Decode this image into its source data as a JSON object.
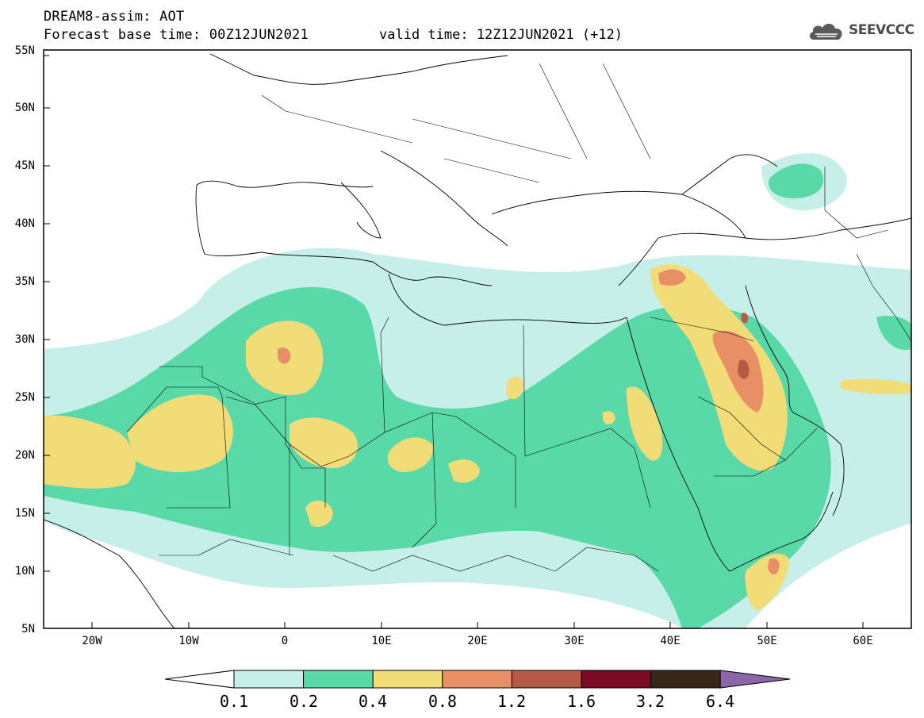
{
  "header": {
    "title": "DREAM8-assim: AOT",
    "base_time": "Forecast base time: 00Z12JUN2021",
    "valid_time": "valid time: 12Z12JUN2021 (+12)"
  },
  "logo": {
    "text": "SEEVCCC",
    "icon": "cloud-icon"
  },
  "map": {
    "variable": "AOT",
    "lat_labels": [
      "55N",
      "50N",
      "45N",
      "40N",
      "35N",
      "30N",
      "25N",
      "20N",
      "15N",
      "10N",
      "5N"
    ],
    "lon_labels": [
      "20W",
      "10W",
      "0",
      "10E",
      "20E",
      "30E",
      "40E",
      "50E",
      "60E"
    ]
  },
  "colorbar": {
    "labels": [
      "0.1",
      "0.2",
      "0.4",
      "0.8",
      "1.2",
      "1.6",
      "3.2",
      "6.4"
    ],
    "colors": [
      "#c6efe9",
      "#5ad9a8",
      "#f2dc77",
      "#e98f66",
      "#b45a47",
      "#7c0a24",
      "#3a2618",
      "#8b66a8"
    ],
    "under_color": "#ffffff",
    "over_color": "#8b66a8"
  }
}
